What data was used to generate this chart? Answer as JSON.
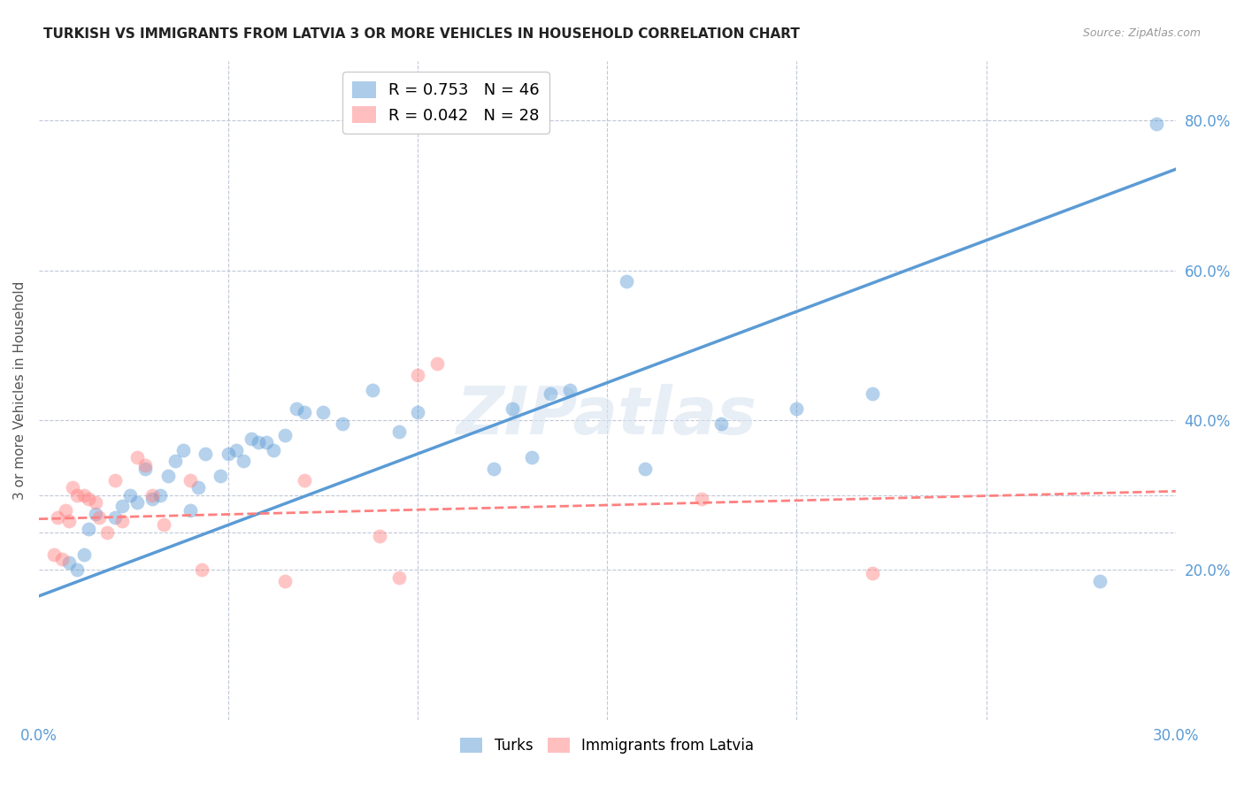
{
  "title": "TURKISH VS IMMIGRANTS FROM LATVIA 3 OR MORE VEHICLES IN HOUSEHOLD CORRELATION CHART",
  "source": "Source: ZipAtlas.com",
  "ylabel": "3 or more Vehicles in Household",
  "x_min": 0.0,
  "x_max": 0.3,
  "y_min": 0.0,
  "y_max": 0.88,
  "y_ticks_right": [
    0.2,
    0.4,
    0.6,
    0.8
  ],
  "y_tick_labels_right": [
    "20.0%",
    "40.0%",
    "60.0%",
    "80.0%"
  ],
  "legend_blue_r": "R = 0.753",
  "legend_blue_n": "N = 46",
  "legend_pink_r": "R = 0.042",
  "legend_pink_n": "N = 28",
  "legend_label_blue": "Turks",
  "legend_label_pink": "Immigrants from Latvia",
  "blue_color": "#5B9BD5",
  "pink_color": "#FF8080",
  "watermark": "ZIPatlas",
  "blue_scatter_x": [
    0.008,
    0.01,
    0.012,
    0.013,
    0.015,
    0.02,
    0.022,
    0.024,
    0.026,
    0.028,
    0.03,
    0.032,
    0.034,
    0.036,
    0.038,
    0.04,
    0.042,
    0.044,
    0.048,
    0.05,
    0.052,
    0.054,
    0.056,
    0.058,
    0.06,
    0.062,
    0.065,
    0.068,
    0.07,
    0.075,
    0.08,
    0.088,
    0.095,
    0.1,
    0.12,
    0.125,
    0.13,
    0.135,
    0.14,
    0.155,
    0.16,
    0.18,
    0.2,
    0.22,
    0.28,
    0.295
  ],
  "blue_scatter_y": [
    0.21,
    0.2,
    0.22,
    0.255,
    0.275,
    0.27,
    0.285,
    0.3,
    0.29,
    0.335,
    0.295,
    0.3,
    0.325,
    0.345,
    0.36,
    0.28,
    0.31,
    0.355,
    0.325,
    0.355,
    0.36,
    0.345,
    0.375,
    0.37,
    0.37,
    0.36,
    0.38,
    0.415,
    0.41,
    0.41,
    0.395,
    0.44,
    0.385,
    0.41,
    0.335,
    0.415,
    0.35,
    0.435,
    0.44,
    0.585,
    0.335,
    0.395,
    0.415,
    0.435,
    0.185,
    0.795
  ],
  "pink_scatter_x": [
    0.004,
    0.005,
    0.006,
    0.007,
    0.008,
    0.009,
    0.01,
    0.012,
    0.013,
    0.015,
    0.016,
    0.018,
    0.02,
    0.022,
    0.026,
    0.028,
    0.03,
    0.033,
    0.04,
    0.043,
    0.065,
    0.07,
    0.09,
    0.095,
    0.1,
    0.105,
    0.175,
    0.22
  ],
  "pink_scatter_y": [
    0.22,
    0.27,
    0.215,
    0.28,
    0.265,
    0.31,
    0.3,
    0.3,
    0.295,
    0.29,
    0.27,
    0.25,
    0.32,
    0.265,
    0.35,
    0.34,
    0.3,
    0.26,
    0.32,
    0.2,
    0.185,
    0.32,
    0.245,
    0.19,
    0.46,
    0.475,
    0.295,
    0.195
  ],
  "blue_line_x0": 0.0,
  "blue_line_x1": 0.3,
  "blue_line_y0": 0.165,
  "blue_line_y1": 0.735,
  "pink_line_x0": 0.0,
  "pink_line_x1": 0.3,
  "pink_line_y0": 0.268,
  "pink_line_y1": 0.305,
  "grid_color": "#C0C8D8",
  "background_color": "#FFFFFF",
  "title_fontsize": 11,
  "tick_label_color": "#5B9BD5",
  "axis_label_color": "#555555"
}
